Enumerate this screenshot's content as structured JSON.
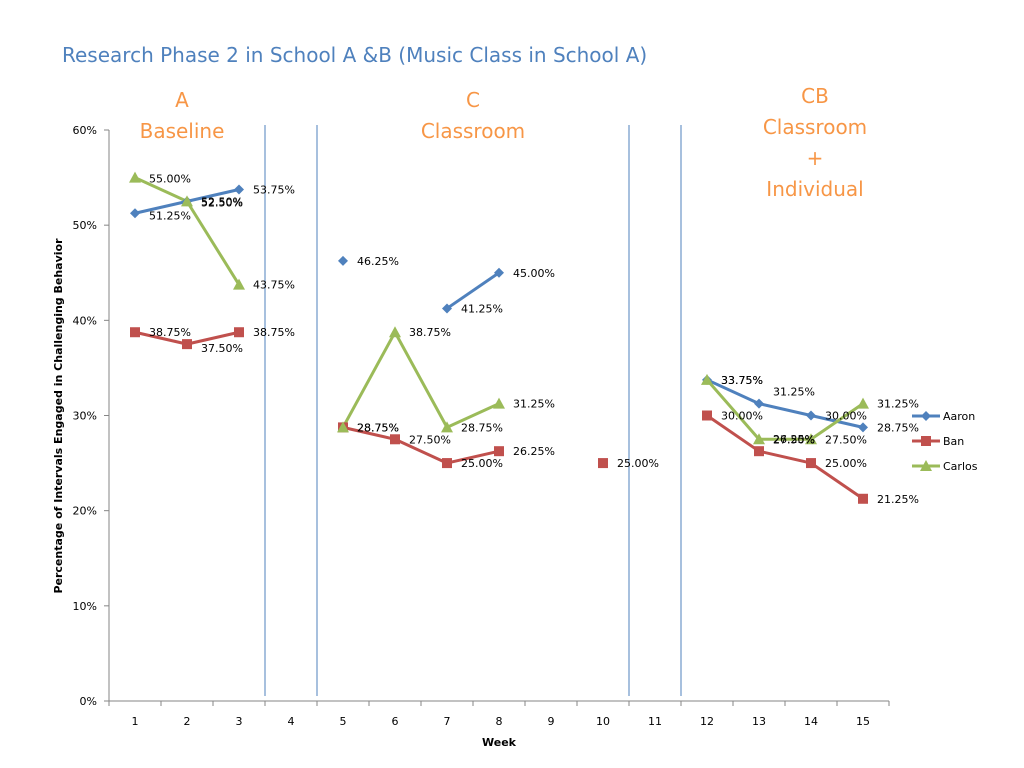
{
  "chart_data": {
    "type": "line",
    "title": "Research Phase 2 in School A &B (Music Class in School A)",
    "xlabel": "Week",
    "ylabel": "Percentage of Intervals Engaged in Challenging Behavior",
    "xlim": [
      0.5,
      15.5
    ],
    "ylim": [
      0,
      60
    ],
    "x_ticks": [
      1,
      2,
      3,
      4,
      5,
      6,
      7,
      8,
      9,
      10,
      11,
      12,
      13,
      14,
      15
    ],
    "y_ticks": [
      "0%",
      "10%",
      "20%",
      "30%",
      "40%",
      "50%",
      "60%"
    ],
    "legend_position": "right",
    "phases": [
      {
        "lines": [
          "A",
          "Baseline"
        ]
      },
      {
        "lines": [
          "C",
          "Classroom"
        ]
      },
      {
        "lines": [
          "CB",
          "Classroom",
          "+",
          "Individual"
        ]
      }
    ],
    "phase_change_lines_between_weeks": [
      [
        3,
        4
      ],
      [
        4,
        5
      ],
      [
        10,
        11
      ],
      [
        11,
        12
      ]
    ],
    "series": [
      {
        "name": "Aaron",
        "color": "#4f81bd",
        "marker": "diamond",
        "points": [
          {
            "x": 1,
            "y": 51.25,
            "label": "51.25%"
          },
          {
            "x": 2,
            "y": 52.5,
            "label": "52.50%"
          },
          {
            "x": 3,
            "y": 53.75,
            "label": "53.75%"
          },
          {
            "x": 5,
            "y": 46.25,
            "label": "46.25%"
          },
          {
            "x": 7,
            "y": 41.25,
            "label": "41.25%"
          },
          {
            "x": 8,
            "y": 45.0,
            "label": "45.00%"
          },
          {
            "x": 12,
            "y": 33.75,
            "label": "33.75%"
          },
          {
            "x": 13,
            "y": 31.25,
            "label": "31.25%"
          },
          {
            "x": 14,
            "y": 30.0,
            "label": "30.00%"
          },
          {
            "x": 15,
            "y": 28.75,
            "label": "28.75%"
          }
        ],
        "segments": [
          [
            1,
            3
          ],
          [
            7,
            8
          ],
          [
            12,
            15
          ]
        ]
      },
      {
        "name": "Ban",
        "color": "#c0504d",
        "marker": "square",
        "points": [
          {
            "x": 1,
            "y": 38.75,
            "label": "38.75%"
          },
          {
            "x": 2,
            "y": 37.5,
            "label": "37.50%"
          },
          {
            "x": 3,
            "y": 38.75,
            "label": "38.75%"
          },
          {
            "x": 5,
            "y": 28.75,
            "label": "28.75%"
          },
          {
            "x": 6,
            "y": 27.5,
            "label": "27.50%"
          },
          {
            "x": 7,
            "y": 25.0,
            "label": "25.00%"
          },
          {
            "x": 8,
            "y": 26.25,
            "label": "26.25%"
          },
          {
            "x": 10,
            "y": 25.0,
            "label": "25.00%"
          },
          {
            "x": 12,
            "y": 30.0,
            "label": "30.00%"
          },
          {
            "x": 13,
            "y": 26.25,
            "label": "26.25%"
          },
          {
            "x": 14,
            "y": 25.0,
            "label": "25.00%"
          },
          {
            "x": 15,
            "y": 21.25,
            "label": "21.25%"
          }
        ],
        "segments": [
          [
            1,
            3
          ],
          [
            5,
            8
          ],
          [
            12,
            15
          ]
        ]
      },
      {
        "name": "Carlos",
        "color": "#9bbb59",
        "marker": "triangle",
        "points": [
          {
            "x": 1,
            "y": 55.0,
            "label": "55.00%"
          },
          {
            "x": 2,
            "y": 52.5,
            "label": "52.50%"
          },
          {
            "x": 3,
            "y": 43.75,
            "label": "43.75%"
          },
          {
            "x": 5,
            "y": 28.75,
            "label": "28.75%"
          },
          {
            "x": 6,
            "y": 38.75,
            "label": "38.75%"
          },
          {
            "x": 7,
            "y": 28.75,
            "label": "28.75%"
          },
          {
            "x": 8,
            "y": 31.25,
            "label": "31.25%"
          },
          {
            "x": 12,
            "y": 33.75,
            "label": "33.75%"
          },
          {
            "x": 13,
            "y": 27.5,
            "label": "27.50%"
          },
          {
            "x": 14,
            "y": 27.5,
            "label": "27.50%"
          },
          {
            "x": 15,
            "y": 31.25,
            "label": "31.25%"
          }
        ],
        "segments": [
          [
            1,
            3
          ],
          [
            5,
            8
          ],
          [
            12,
            15
          ]
        ]
      }
    ]
  }
}
